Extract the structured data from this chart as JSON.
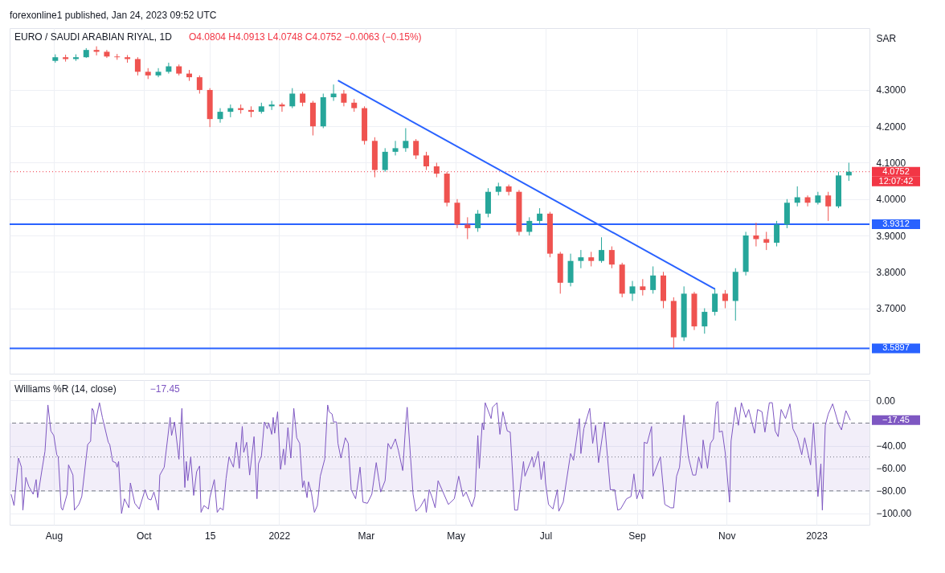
{
  "chart_data": [
    {
      "type": "candlestick",
      "title": "EURO / SAUDI ARABIAN RIYAL, 1D",
      "subtitle": "O4.0804 H4.0913 L4.0748 C4.0752 −0.0063 (−0.15%)",
      "ylabel": "SAR",
      "annotations": [
        "forexonline1 published, Jan 24, 2023 09:52 UTC",
        "12:07:42"
      ],
      "x": [
        "2021-08-02",
        "2021-08-09",
        "2021-08-16",
        "2021-08-23",
        "2021-08-30",
        "2021-09-06",
        "2021-09-13",
        "2021-09-20",
        "2021-09-27",
        "2021-10-04",
        "2021-10-11",
        "2021-10-18",
        "2021-10-25",
        "2021-11-01",
        "2021-11-08",
        "2021-11-15",
        "2021-11-22",
        "2021-11-29",
        "2021-12-06",
        "2021-12-13",
        "2021-12-20",
        "2021-12-27",
        "2022-01-03",
        "2022-01-10",
        "2022-01-17",
        "2022-01-24",
        "2022-01-31",
        "2022-02-07",
        "2022-02-14",
        "2022-02-21",
        "2022-02-28",
        "2022-03-07",
        "2022-03-14",
        "2022-03-21",
        "2022-03-28",
        "2022-04-04",
        "2022-04-11",
        "2022-04-18",
        "2022-04-25",
        "2022-05-02",
        "2022-05-09",
        "2022-05-16",
        "2022-05-23",
        "2022-05-30",
        "2022-06-06",
        "2022-06-13",
        "2022-06-20",
        "2022-06-27",
        "2022-07-04",
        "2022-07-11",
        "2022-07-18",
        "2022-07-25",
        "2022-08-01",
        "2022-08-08",
        "2022-08-15",
        "2022-08-22",
        "2022-08-29",
        "2022-09-05",
        "2022-09-12",
        "2022-09-19",
        "2022-09-26",
        "2022-10-03",
        "2022-10-10",
        "2022-10-17",
        "2022-10-24",
        "2022-10-31",
        "2022-11-07",
        "2022-11-14",
        "2022-11-21",
        "2022-11-28",
        "2022-12-05",
        "2022-12-12",
        "2022-12-19",
        "2022-12-26",
        "2023-01-02",
        "2023-01-09",
        "2023-01-16",
        "2023-01-23"
      ],
      "ohlc": [
        [
          4.38,
          4.398,
          4.375,
          4.39
        ],
        [
          4.39,
          4.397,
          4.378,
          4.385
        ],
        [
          4.385,
          4.398,
          4.38,
          4.39
        ],
        [
          4.39,
          4.415,
          4.388,
          4.41
        ],
        [
          4.41,
          4.42,
          4.395,
          4.405
        ],
        [
          4.405,
          4.41,
          4.388,
          4.392
        ],
        [
          4.392,
          4.399,
          4.383,
          4.39
        ],
        [
          4.39,
          4.396,
          4.375,
          4.385
        ],
        [
          4.385,
          4.39,
          4.34,
          4.35
        ],
        [
          4.35,
          4.36,
          4.33,
          4.34
        ],
        [
          4.34,
          4.36,
          4.335,
          4.35
        ],
        [
          4.35,
          4.375,
          4.345,
          4.365
        ],
        [
          4.365,
          4.37,
          4.34,
          4.345
        ],
        [
          4.345,
          4.355,
          4.325,
          4.335
        ],
        [
          4.335,
          4.34,
          4.29,
          4.3
        ],
        [
          4.3,
          4.305,
          4.198,
          4.22
        ],
        [
          4.22,
          4.25,
          4.21,
          4.24
        ],
        [
          4.24,
          4.26,
          4.225,
          4.25
        ],
        [
          4.25,
          4.26,
          4.235,
          4.245
        ],
        [
          4.245,
          4.255,
          4.225,
          4.24
        ],
        [
          4.24,
          4.265,
          4.235,
          4.255
        ],
        [
          4.255,
          4.27,
          4.245,
          4.26
        ],
        [
          4.26,
          4.265,
          4.24,
          4.255
        ],
        [
          4.255,
          4.305,
          4.25,
          4.29
        ],
        [
          4.29,
          4.295,
          4.255,
          4.265
        ],
        [
          4.265,
          4.27,
          4.175,
          4.2
        ],
        [
          4.2,
          4.29,
          4.195,
          4.28
        ],
        [
          4.28,
          4.315,
          4.27,
          4.29
        ],
        [
          4.29,
          4.3,
          4.255,
          4.265
        ],
        [
          4.265,
          4.275,
          4.24,
          4.25
        ],
        [
          4.25,
          4.255,
          4.15,
          4.16
        ],
        [
          4.16,
          4.17,
          4.06,
          4.08
        ],
        [
          4.08,
          4.14,
          4.075,
          4.13
        ],
        [
          4.13,
          4.16,
          4.12,
          4.14
        ],
        [
          4.14,
          4.195,
          4.13,
          4.16
        ],
        [
          4.16,
          4.165,
          4.11,
          4.12
        ],
        [
          4.12,
          4.13,
          4.08,
          4.09
        ],
        [
          4.09,
          4.1,
          4.06,
          4.07
        ],
        [
          4.07,
          4.075,
          3.98,
          3.99
        ],
        [
          3.99,
          4.0,
          3.92,
          3.93
        ],
        [
          3.93,
          3.95,
          3.89,
          3.92
        ],
        [
          3.92,
          3.97,
          3.91,
          3.96
        ],
        [
          3.96,
          4.03,
          3.95,
          4.02
        ],
        [
          4.02,
          4.045,
          4.01,
          4.035
        ],
        [
          4.035,
          4.04,
          4.01,
          4.02
        ],
        [
          4.02,
          4.025,
          3.9,
          3.91
        ],
        [
          3.91,
          3.95,
          3.9,
          3.94
        ],
        [
          3.94,
          3.975,
          3.93,
          3.96
        ],
        [
          3.96,
          3.965,
          3.84,
          3.85
        ],
        [
          3.85,
          3.855,
          3.74,
          3.77
        ],
        [
          3.77,
          3.85,
          3.76,
          3.83
        ],
        [
          3.83,
          3.86,
          3.81,
          3.84
        ],
        [
          3.84,
          3.855,
          3.815,
          3.83
        ],
        [
          3.83,
          3.895,
          3.825,
          3.86
        ],
        [
          3.86,
          3.87,
          3.81,
          3.82
        ],
        [
          3.82,
          3.825,
          3.73,
          3.74
        ],
        [
          3.74,
          3.775,
          3.72,
          3.76
        ],
        [
          3.76,
          3.78,
          3.735,
          3.75
        ],
        [
          3.75,
          3.815,
          3.74,
          3.79
        ],
        [
          3.79,
          3.8,
          3.7,
          3.72
        ],
        [
          3.72,
          3.73,
          3.5897,
          3.62
        ],
        [
          3.62,
          3.76,
          3.61,
          3.74
        ],
        [
          3.74,
          3.745,
          3.64,
          3.65
        ],
        [
          3.65,
          3.7,
          3.63,
          3.69
        ],
        [
          3.69,
          3.755,
          3.68,
          3.74
        ],
        [
          3.74,
          3.75,
          3.7,
          3.72
        ],
        [
          3.72,
          3.81,
          3.666,
          3.8
        ],
        [
          3.8,
          3.91,
          3.79,
          3.9
        ],
        [
          3.9,
          3.935,
          3.87,
          3.89
        ],
        [
          3.89,
          3.91,
          3.86,
          3.88
        ],
        [
          3.88,
          3.94,
          3.87,
          3.93
        ],
        [
          3.93,
          4.0,
          3.92,
          3.99
        ],
        [
          3.99,
          4.035,
          3.98,
          4.005
        ],
        [
          4.005,
          4.01,
          3.98,
          3.99
        ],
        [
          3.99,
          4.02,
          3.985,
          4.01
        ],
        [
          4.01,
          4.02,
          3.94,
          3.98
        ],
        [
          3.98,
          4.075,
          3.975,
          4.065
        ],
        [
          4.065,
          4.1,
          4.05,
          4.0752
        ]
      ],
      "colors": [
        "#26a69a",
        "#ef5350",
        "#26a69a",
        "#26a69a",
        "#ef5350",
        "#ef5350",
        "#ef5350",
        "#ef5350",
        "#ef5350",
        "#ef5350",
        "#26a69a",
        "#26a69a",
        "#ef5350",
        "#ef5350",
        "#ef5350",
        "#ef5350",
        "#26a69a",
        "#26a69a",
        "#ef5350",
        "#ef5350",
        "#26a69a",
        "#26a69a",
        "#ef5350",
        "#26a69a",
        "#ef5350",
        "#ef5350",
        "#26a69a",
        "#26a69a",
        "#ef5350",
        "#ef5350",
        "#ef5350",
        "#ef5350",
        "#26a69a",
        "#26a69a",
        "#26a69a",
        "#ef5350",
        "#ef5350",
        "#ef5350",
        "#ef5350",
        "#ef5350",
        "#ef5350",
        "#26a69a",
        "#26a69a",
        "#26a69a",
        "#ef5350",
        "#ef5350",
        "#26a69a",
        "#26a69a",
        "#ef5350",
        "#ef5350",
        "#26a69a",
        "#26a69a",
        "#ef5350",
        "#26a69a",
        "#ef5350",
        "#ef5350",
        "#26a69a",
        "#ef5350",
        "#26a69a",
        "#ef5350",
        "#ef5350",
        "#26a69a",
        "#ef5350",
        "#26a69a",
        "#26a69a",
        "#ef5350",
        "#26a69a",
        "#26a69a",
        "#ef5350",
        "#ef5350",
        "#26a69a",
        "#26a69a",
        "#26a69a",
        "#ef5350",
        "#26a69a",
        "#ef5350",
        "#26a69a",
        "#26a69a"
      ],
      "series": [
        {
          "type": "line",
          "color": "#2962ff",
          "x": [
            "2022-02-10",
            "2022-10-24"
          ],
          "values": [
            4.326,
            3.753
          ]
        }
      ],
      "ref_lines": [
        {
          "axis": "y",
          "value": 3.9312,
          "label": "3.9312",
          "color": "#2962ff"
        },
        {
          "axis": "y",
          "value": 3.5897,
          "label": "3.5897",
          "color": "#2962ff"
        },
        {
          "axis": "y",
          "value": 4.0752,
          "label": "4.0752",
          "color": "#f23645",
          "line_style": "dotted"
        }
      ],
      "xlim": [
        "2021-07-02",
        "2023-02-06"
      ],
      "ylim": [
        3.52,
        4.47
      ],
      "xticks": [
        {
          "value": "2021-08-01",
          "label": null
        },
        {
          "value": "2021-10-01",
          "label": null
        },
        {
          "value": "2021-11-15",
          "label": null
        },
        {
          "value": "2022-01-01",
          "label": null
        },
        {
          "value": "2022-03-01",
          "label": null
        },
        {
          "value": "2022-05-01",
          "label": null
        },
        {
          "value": "2022-07-01",
          "label": null
        },
        {
          "value": "2022-09-01",
          "label": null
        },
        {
          "value": "2022-11-01",
          "label": null
        },
        {
          "value": "2023-01-01",
          "label": null
        }
      ],
      "yticks": [
        {
          "value": 3.7,
          "label": "3.7000"
        },
        {
          "value": 3.8,
          "label": "3.8000"
        },
        {
          "value": 3.9,
          "label": "3.9000"
        },
        {
          "value": 4.0,
          "label": "4.0000"
        },
        {
          "value": 4.1,
          "label": "4.1000"
        },
        {
          "value": 4.2,
          "label": "4.2000"
        },
        {
          "value": 4.3,
          "label": "4.3000"
        }
      ],
      "grid": true,
      "tick_labels": "y"
    },
    {
      "type": "line",
      "title": "Williams %R (14, close)",
      "subtitle": "−17.45",
      "annotations": [
        "−17.45"
      ],
      "series": [
        {
          "color": "#7e57c2",
          "x": [
            "2021-07-03",
            "2021-07-05",
            "2021-07-08",
            "2021-07-10",
            "2021-07-11",
            "2021-07-13",
            "2021-07-15",
            "2021-07-18",
            "2021-07-20",
            "2021-07-21",
            "2021-07-24",
            "2021-07-26",
            "2021-07-28",
            "2021-07-30",
            "2021-08-01",
            "2021-08-03",
            "2021-08-04",
            "2021-08-06",
            "2021-08-07",
            "2021-08-10",
            "2021-08-11",
            "2021-08-14",
            "2021-08-15",
            "2021-08-18",
            "2021-08-20",
            "2021-08-24",
            "2021-08-26",
            "2021-08-27",
            "2021-08-28",
            "2021-08-29",
            "2021-09-01",
            "2021-09-03",
            "2021-09-07",
            "2021-09-08",
            "2021-09-10",
            "2021-09-12",
            "2021-09-13",
            "2021-09-14",
            "2021-09-16",
            "2021-09-18",
            "2021-09-21",
            "2021-09-22",
            "2021-09-25",
            "2021-09-28",
            "2021-10-02",
            "2021-10-04",
            "2021-10-06",
            "2021-10-08",
            "2021-10-11",
            "2021-10-12",
            "2021-10-15",
            "2021-10-19",
            "2021-10-20",
            "2021-10-22",
            "2021-10-25",
            "2021-10-27",
            "2021-10-29",
            "2021-10-30",
            "2021-10-31",
            "2021-11-02",
            "2021-11-04",
            "2021-11-06",
            "2021-11-08",
            "2021-11-09",
            "2021-11-11",
            "2021-11-14",
            "2021-11-15",
            "2021-11-18",
            "2021-11-20",
            "2021-11-22",
            "2021-11-24",
            "2021-11-26",
            "2021-11-28",
            "2021-12-01",
            "2021-12-03",
            "2021-12-05",
            "2021-12-07",
            "2021-12-08",
            "2021-12-10",
            "2021-12-12",
            "2021-12-15",
            "2021-12-17",
            "2021-12-18",
            "2021-12-20",
            "2021-12-22",
            "2021-12-24",
            "2021-12-25",
            "2021-12-27",
            "2021-12-28",
            "2021-12-29",
            "2021-12-31",
            "2022-01-02",
            "2022-01-04",
            "2022-01-05",
            "2022-01-07",
            "2022-01-09",
            "2022-01-11",
            "2022-01-13",
            "2022-01-15",
            "2022-01-17",
            "2022-01-18",
            "2022-01-20",
            "2022-01-21",
            "2022-01-23",
            "2022-01-25",
            "2022-01-27",
            "2022-01-29",
            "2022-02-01",
            "2022-02-03",
            "2022-02-04",
            "2022-02-06",
            "2022-02-07",
            "2022-02-09",
            "2022-02-10",
            "2022-02-12",
            "2022-02-15",
            "2022-02-17",
            "2022-02-19",
            "2022-02-22",
            "2022-02-25",
            "2022-02-27",
            "2022-03-02",
            "2022-03-05",
            "2022-03-08",
            "2022-03-10",
            "2022-03-11",
            "2022-03-14",
            "2022-03-16",
            "2022-03-18",
            "2022-03-21",
            "2022-03-23",
            "2022-03-26",
            "2022-03-28",
            "2022-03-29",
            "2022-04-02",
            "2022-04-04",
            "2022-04-07",
            "2022-04-10",
            "2022-04-11",
            "2022-04-13",
            "2022-04-15",
            "2022-04-17",
            "2022-04-19",
            "2022-04-26",
            "2022-04-30",
            "2022-05-03",
            "2022-05-06",
            "2022-05-08",
            "2022-05-12",
            "2022-05-14",
            "2022-05-16",
            "2022-05-17",
            "2022-05-19",
            "2022-05-20",
            "2022-05-21",
            "2022-05-25",
            "2022-05-26",
            "2022-05-29",
            "2022-05-31",
            "2022-06-02",
            "2022-06-05",
            "2022-06-07",
            "2022-06-10",
            "2022-06-12",
            "2022-06-16",
            "2022-06-17",
            "2022-06-22",
            "2022-06-23",
            "2022-06-26",
            "2022-06-28",
            "2022-06-30",
            "2022-07-01",
            "2022-07-03",
            "2022-07-06",
            "2022-07-09",
            "2022-07-10",
            "2022-07-13",
            "2022-07-18",
            "2022-07-20",
            "2022-07-24",
            "2022-07-25",
            "2022-07-27",
            "2022-07-31",
            "2022-08-02",
            "2022-08-04",
            "2022-08-06",
            "2022-08-10",
            "2022-08-14",
            "2022-08-17",
            "2022-08-19",
            "2022-08-21",
            "2022-08-25",
            "2022-08-28",
            "2022-08-30",
            "2022-09-01",
            "2022-09-03",
            "2022-09-05",
            "2022-09-06",
            "2022-09-08",
            "2022-09-11",
            "2022-09-12",
            "2022-09-17",
            "2022-09-20",
            "2022-09-24",
            "2022-09-26",
            "2022-09-28",
            "2022-09-30",
            "2022-10-03",
            "2022-10-06",
            "2022-10-09",
            "2022-10-11",
            "2022-10-13",
            "2022-10-15",
            "2022-10-16",
            "2022-10-19",
            "2022-10-21",
            "2022-10-23",
            "2022-10-25",
            "2022-10-26",
            "2022-10-27",
            "2022-10-29",
            "2022-10-31",
            "2022-11-03",
            "2022-11-04",
            "2022-11-07",
            "2022-11-09",
            "2022-11-11",
            "2022-11-14",
            "2022-11-16",
            "2022-11-20",
            "2022-11-22",
            "2022-11-25",
            "2022-11-27",
            "2022-11-30",
            "2022-12-02",
            "2022-12-04",
            "2022-12-06",
            "2022-12-08",
            "2022-12-11",
            "2022-12-14",
            "2022-12-16",
            "2022-12-19",
            "2022-12-22",
            "2022-12-24",
            "2022-12-28",
            "2022-12-30",
            "2023-01-02",
            "2023-01-04",
            "2023-01-05",
            "2023-01-07",
            "2023-01-09",
            "2023-01-12",
            "2023-01-16",
            "2023-01-18",
            "2023-01-21",
            "2023-01-24"
          ],
          "values": [
            -83,
            -93,
            -51,
            -59,
            -97,
            -68,
            -76,
            -83,
            -70,
            -86,
            -61,
            -45,
            -4,
            -27,
            -31,
            -48,
            -50,
            -95,
            -97,
            -83,
            -57,
            -66,
            -97,
            -92,
            -85,
            -39,
            -36,
            -7,
            -9,
            -21,
            -2,
            -15,
            -37,
            -39,
            -54,
            -55,
            -59,
            -54,
            -100,
            -87,
            -95,
            -73,
            -91,
            -96,
            -79,
            -87,
            -88,
            -81,
            -97,
            -66,
            -59,
            -15,
            -31,
            -19,
            -52,
            -7,
            -77,
            -54,
            -71,
            -50,
            -84,
            -63,
            -58,
            -99,
            -93,
            -96,
            -86,
            -70,
            -99,
            -95,
            -97,
            -69,
            -50,
            -59,
            -37,
            -60,
            -23,
            -46,
            -37,
            -66,
            -32,
            -87,
            -56,
            -49,
            -19,
            -25,
            -20,
            -30,
            -15,
            -29,
            -10,
            -61,
            -43,
            -57,
            -24,
            -51,
            -7,
            -33,
            -38,
            -77,
            -71,
            -86,
            -72,
            -82,
            -99,
            -93,
            -67,
            -52,
            -4,
            -10,
            -12,
            -19,
            -19,
            -38,
            -51,
            -33,
            -38,
            -79,
            -87,
            -59,
            -90,
            -91,
            -83,
            -55,
            -72,
            -81,
            -71,
            -38,
            -43,
            -34,
            -44,
            -62,
            -21,
            -6,
            -83,
            -98,
            -94,
            -87,
            -99,
            -79,
            -86,
            -95,
            -71,
            -92,
            -87,
            -67,
            -85,
            -81,
            -94,
            -85,
            -31,
            -60,
            -20,
            -26,
            -2,
            -16,
            -6,
            -2,
            -30,
            -10,
            -27,
            -28,
            -97,
            -97,
            -54,
            -67,
            -50,
            -59,
            -45,
            -70,
            -54,
            -73,
            -92,
            -96,
            -79,
            -98,
            -90,
            -47,
            -53,
            -16,
            -47,
            -25,
            -7,
            -38,
            -22,
            -55,
            -19,
            -79,
            -79,
            -97,
            -96,
            -87,
            -85,
            -65,
            -87,
            -79,
            -87,
            -37,
            -38,
            -23,
            -67,
            -50,
            -92,
            -95,
            -95,
            -67,
            -59,
            -13,
            -50,
            -66,
            -66,
            -50,
            -60,
            -35,
            -60,
            -38,
            -34,
            -2,
            -1,
            -28,
            -27,
            -46,
            -90,
            -36,
            -6,
            -22,
            -2,
            -15,
            -8,
            -29,
            -8,
            -10,
            -28,
            -2,
            -2,
            -27,
            -32,
            -8,
            -16,
            -3,
            -25,
            -33,
            -48,
            -33,
            -57,
            -20,
            -85,
            -56,
            -97,
            -22,
            -12,
            -3,
            -21,
            -26,
            -9,
            -17.45
          ]
        }
      ],
      "bands": [
        {
          "axis": "y",
          "from": -80,
          "to": -20,
          "color": "#7e57c2"
        }
      ],
      "ref_lines": [
        {
          "axis": "y",
          "value": -20,
          "color": "#787b86",
          "line_style": "dashed"
        },
        {
          "axis": "y",
          "value": -50,
          "color": "#787b86",
          "line_style": "dotted"
        },
        {
          "axis": "y",
          "value": -80,
          "color": "#787b86",
          "line_style": "dashed"
        }
      ],
      "xlim": [
        "2021-07-02",
        "2023-02-06"
      ],
      "ylim": [
        -110,
        18
      ],
      "xticks": [
        {
          "value": "2021-08-01",
          "label": "Aug"
        },
        {
          "value": "2021-10-01",
          "label": "Oct"
        },
        {
          "value": "2021-11-15",
          "label": "15"
        },
        {
          "value": "2022-01-01",
          "label": "2022"
        },
        {
          "value": "2022-03-01",
          "label": "Mar"
        },
        {
          "value": "2022-05-01",
          "label": "May"
        },
        {
          "value": "2022-07-01",
          "label": "Jul"
        },
        {
          "value": "2022-09-01",
          "label": "Sep"
        },
        {
          "value": "2022-11-01",
          "label": "Nov"
        },
        {
          "value": "2023-01-01",
          "label": "2023"
        }
      ],
      "yticks": [
        {
          "value": 0,
          "label": "0.00"
        },
        {
          "value": -40,
          "label": "−40.00"
        },
        {
          "value": -60,
          "label": "−60.00"
        },
        {
          "value": -80,
          "label": "−80.00"
        },
        {
          "value": -100,
          "label": "−100.00"
        }
      ],
      "grid": true
    }
  ]
}
